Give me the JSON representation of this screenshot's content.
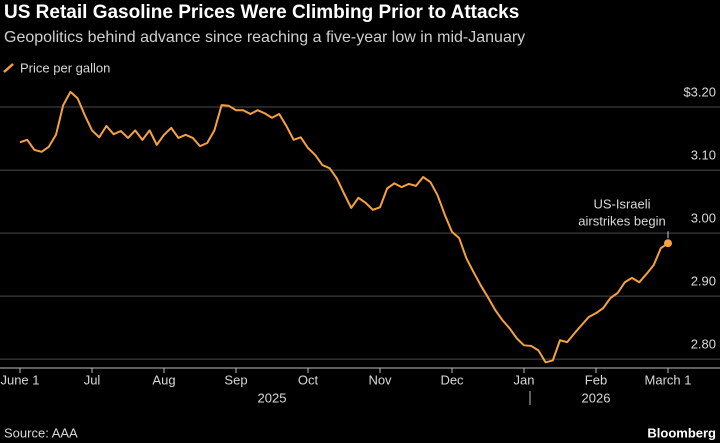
{
  "chart_data": {
    "type": "line",
    "title": "US Retail Gasoline Prices Were Climbing Prior to Attacks",
    "subtitle": "Geopolitics behind advance since reaching a five-year low in mid-January",
    "source": "Source: AAA",
    "brand": "Bloomberg",
    "annotation": [
      "US-Israeli",
      "airstrikes begin"
    ],
    "categories": [
      "June 1",
      null,
      null,
      null,
      null,
      null,
      null,
      null,
      null,
      null,
      "Jul",
      null,
      null,
      null,
      null,
      null,
      null,
      null,
      null,
      null,
      "Aug",
      null,
      null,
      null,
      null,
      null,
      null,
      null,
      null,
      null,
      "Sep",
      null,
      null,
      null,
      null,
      null,
      null,
      null,
      null,
      null,
      "Oct",
      null,
      null,
      null,
      null,
      null,
      null,
      null,
      null,
      null,
      "Nov",
      null,
      null,
      null,
      null,
      null,
      null,
      null,
      null,
      null,
      "Dec",
      null,
      null,
      null,
      null,
      null,
      null,
      null,
      null,
      null,
      "Jan",
      null,
      null,
      null,
      null,
      null,
      null,
      null,
      null,
      null,
      "Feb",
      null,
      null,
      null,
      null,
      null,
      null,
      null,
      null,
      null,
      "March 1"
    ],
    "x_groups": [
      "2025",
      "2026"
    ],
    "series": [
      {
        "name": "Price per gallon",
        "color": "#f5a13f",
        "values": [
          3.144,
          3.148,
          3.132,
          3.129,
          3.137,
          3.156,
          3.203,
          3.224,
          3.214,
          3.187,
          3.163,
          3.152,
          3.17,
          3.157,
          3.162,
          3.151,
          3.163,
          3.148,
          3.163,
          3.14,
          3.156,
          3.167,
          3.151,
          3.156,
          3.151,
          3.138,
          3.143,
          3.163,
          3.203,
          3.202,
          3.195,
          3.195,
          3.189,
          3.195,
          3.19,
          3.183,
          3.189,
          3.17,
          3.148,
          3.152,
          3.135,
          3.124,
          3.108,
          3.103,
          3.087,
          3.063,
          3.04,
          3.056,
          3.048,
          3.037,
          3.041,
          3.071,
          3.079,
          3.073,
          3.078,
          3.075,
          3.089,
          3.081,
          3.06,
          3.029,
          3.002,
          2.992,
          2.96,
          2.938,
          2.917,
          2.898,
          2.878,
          2.862,
          2.849,
          2.833,
          2.822,
          2.821,
          2.814,
          2.795,
          2.798,
          2.83,
          2.827,
          2.841,
          2.854,
          2.867,
          2.873,
          2.881,
          2.897,
          2.905,
          2.922,
          2.929,
          2.922,
          2.935,
          2.949,
          2.976,
          2.984
        ]
      }
    ],
    "ylim": [
      2.786,
      3.235
    ],
    "yticks": [
      {
        "value": 3.2,
        "label": "$3.20"
      },
      {
        "value": 3.1,
        "label": "3.10"
      },
      {
        "value": 3.0,
        "label": "3.00"
      },
      {
        "value": 2.9,
        "label": "2.90"
      },
      {
        "value": 2.8,
        "label": "2.80"
      }
    ],
    "grid": true
  }
}
